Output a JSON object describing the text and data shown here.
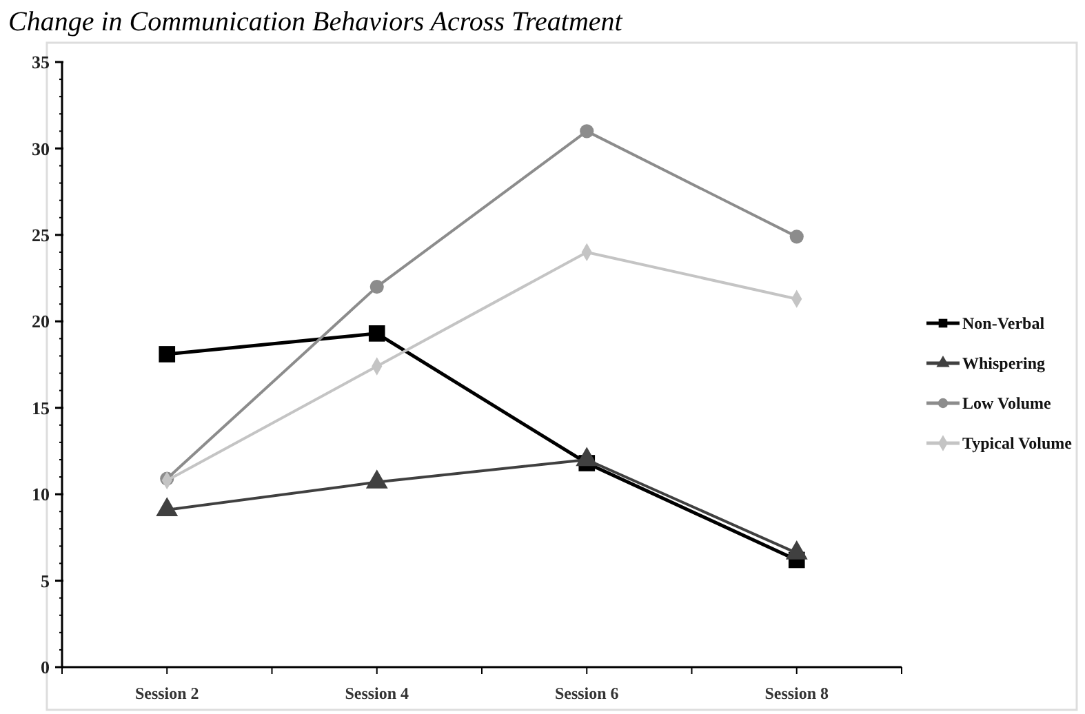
{
  "chart_data": {
    "type": "line",
    "title": "Change in Communication Behaviors Across Treatment",
    "categories": [
      "Session 2",
      "Session 4",
      "Session 6",
      "Session 8"
    ],
    "series": [
      {
        "name": "Non-Verbal",
        "color": "#000000",
        "marker": "square",
        "values": [
          18.1,
          19.3,
          11.8,
          6.2
        ]
      },
      {
        "name": "Whispering",
        "color": "#404040",
        "marker": "triangle",
        "values": [
          9.1,
          10.7,
          12.0,
          6.6
        ]
      },
      {
        "name": "Low Volume",
        "color": "#8c8c8c",
        "marker": "circle",
        "values": [
          10.9,
          22.0,
          31.0,
          24.9
        ]
      },
      {
        "name": "Typical Volume",
        "color": "#c4c4c4",
        "marker": "diamond",
        "values": [
          10.8,
          17.4,
          24.0,
          21.3
        ]
      }
    ],
    "ylim": [
      0,
      35
    ],
    "yticks": [
      0,
      5,
      10,
      15,
      20,
      25,
      30,
      35
    ],
    "grid": false,
    "legend": "right",
    "line_style": "solid"
  }
}
